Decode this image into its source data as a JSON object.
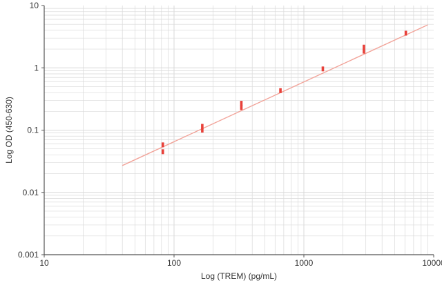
{
  "chart_data": {
    "type": "scatter",
    "title": "",
    "xlabel": "Log (TREM) (pg/mL)",
    "ylabel": "Log OD (450-630)",
    "x_scale": "log",
    "y_scale": "log",
    "xlim": [
      10,
      10000
    ],
    "ylim": [
      0.001,
      10
    ],
    "grid": true,
    "x_ticks": [
      {
        "value": 10,
        "label": "10"
      },
      {
        "value": 100,
        "label": "100"
      },
      {
        "value": 1000,
        "label": "1000"
      },
      {
        "value": 10000,
        "label": "10000"
      }
    ],
    "y_ticks": [
      {
        "value": 0.001,
        "label": "0.001"
      },
      {
        "value": 0.01,
        "label": "0.01"
      },
      {
        "value": 0.1,
        "label": "0.1"
      },
      {
        "value": 1,
        "label": "1"
      },
      {
        "value": 10,
        "label": "10"
      }
    ],
    "series": [
      {
        "type": "scatter",
        "x": [
          82,
          82,
          165,
          165,
          330,
          330,
          660,
          1400,
          2900,
          2900,
          6100
        ],
        "y": [
          0.045,
          0.058,
          0.1,
          0.115,
          0.23,
          0.27,
          0.43,
          0.96,
          1.85,
          2.15,
          3.6
        ]
      },
      {
        "type": "line",
        "x": [
          40,
          9000
        ],
        "y": [
          0.027,
          4.9
        ]
      }
    ],
    "colors": {
      "marker": "#e8413a",
      "fit_line": "#f2a49a",
      "grid": "#d9d9d9",
      "axis": "#555555"
    }
  }
}
